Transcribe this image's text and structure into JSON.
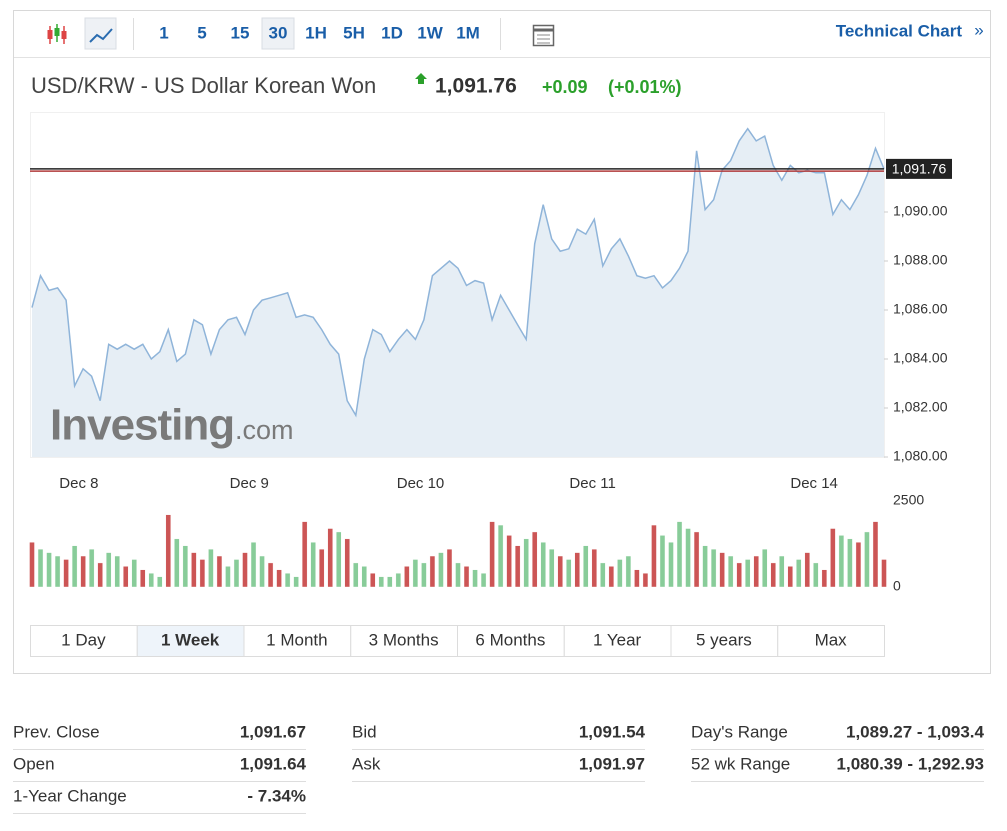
{
  "toolbar": {
    "intervals": [
      "1",
      "5",
      "15",
      "30",
      "1H",
      "5H",
      "1D",
      "1W",
      "1M"
    ],
    "active": 3,
    "link": "Technical Chart",
    "link_arrow": "»"
  },
  "header": {
    "name": "USD/KRW - US Dollar Korean Won",
    "price": "1,091.76",
    "change": "+0.09",
    "change_pct": "(+0.01%)"
  },
  "watermark": {
    "brand": "Investing",
    "suffix": ".com"
  },
  "chart_data": [
    {
      "type": "line",
      "color": "#8fb4d9",
      "fill": "#e6eef5",
      "values": [
        1086.1,
        1087.4,
        1086.8,
        1086.9,
        1086.4,
        1082.9,
        1083.6,
        1083.3,
        1082.3,
        1084.6,
        1084.4,
        1084.6,
        1084.4,
        1084.6,
        1084.0,
        1084.3,
        1085.2,
        1083.9,
        1084.2,
        1085.6,
        1085.4,
        1084.2,
        1085.2,
        1085.6,
        1085.7,
        1085.0,
        1086.0,
        1086.4,
        1086.5,
        1086.6,
        1086.7,
        1085.7,
        1085.8,
        1085.7,
        1085.2,
        1084.6,
        1084.2,
        1082.3,
        1081.7,
        1084.0,
        1085.2,
        1085.0,
        1084.3,
        1084.8,
        1085.2,
        1084.8,
        1085.6,
        1087.4,
        1087.7,
        1088.0,
        1087.7,
        1087.0,
        1087.2,
        1087.1,
        1085.6,
        1086.6,
        1086.0,
        1085.4,
        1084.8,
        1088.7,
        1090.3,
        1088.9,
        1088.4,
        1088.5,
        1089.3,
        1089.1,
        1089.7,
        1087.8,
        1088.5,
        1088.9,
        1088.2,
        1087.4,
        1087.3,
        1087.4,
        1086.9,
        1087.2,
        1087.7,
        1088.4,
        1092.5,
        1090.1,
        1090.5,
        1091.7,
        1092.1,
        1092.9,
        1093.4,
        1092.9,
        1093.1,
        1091.9,
        1091.3,
        1091.9,
        1091.6,
        1091.7,
        1091.6,
        1091.6,
        1089.9,
        1090.5,
        1090.1,
        1090.7,
        1091.5,
        1092.6,
        1091.76
      ],
      "xlim": [
        0,
        100
      ],
      "xticks": [
        {
          "value": 5.5,
          "label": "Dec 8"
        },
        {
          "value": 25.5,
          "label": "Dec 9"
        },
        {
          "value": 45.6,
          "label": "Dec 10"
        },
        {
          "value": 65.8,
          "label": "Dec 11"
        },
        {
          "value": 91.8,
          "label": "Dec 14"
        }
      ],
      "ylim": [
        1080,
        1094
      ],
      "yticks": [
        {
          "value": 1080,
          "label": "1,080.00"
        },
        {
          "value": 1082,
          "label": "1,082.00"
        },
        {
          "value": 1084,
          "label": "1,084.00"
        },
        {
          "value": 1086,
          "label": "1,086.00"
        },
        {
          "value": 1088,
          "label": "1,088.00"
        },
        {
          "value": 1090,
          "label": "1,090.00"
        }
      ],
      "hlines": [
        {
          "value": 1091.76,
          "label": "1,091.76",
          "color": "#222222"
        },
        {
          "value": 1091.67,
          "color": "#b03a3a"
        }
      ]
    },
    {
      "type": "bar",
      "values": [
        1300,
        1100,
        1000,
        900,
        800,
        1200,
        900,
        1100,
        700,
        1000,
        900,
        600,
        800,
        500,
        400,
        300,
        2100,
        1400,
        1200,
        1000,
        800,
        1100,
        900,
        600,
        800,
        1000,
        1300,
        900,
        700,
        500,
        400,
        300,
        1900,
        1300,
        1100,
        1700,
        1600,
        1400,
        700,
        600,
        400,
        300,
        300,
        400,
        600,
        800,
        700,
        900,
        1000,
        1100,
        700,
        600,
        500,
        400,
        1900,
        1800,
        1500,
        1200,
        1400,
        1600,
        1300,
        1100,
        900,
        800,
        1000,
        1200,
        1100,
        700,
        600,
        800,
        900,
        500,
        400,
        1800,
        1500,
        1300,
        1900,
        1700,
        1600,
        1200,
        1100,
        1000,
        900,
        700,
        800,
        900,
        1100,
        700,
        900,
        600,
        800,
        1000,
        700,
        500,
        1700,
        1500,
        1400,
        1300,
        1600,
        1900,
        800
      ],
      "colors": [
        "#c55",
        "#8c9",
        "#8c9",
        "#8c9",
        "#c55",
        "#8c9",
        "#c55",
        "#8c9",
        "#c55",
        "#8c9",
        "#8c9",
        "#c55",
        "#8c9",
        "#c55",
        "#8c9",
        "#8c9",
        "#c55",
        "#8c9",
        "#8c9",
        "#c55",
        "#c55",
        "#8c9",
        "#c55",
        "#8c9",
        "#8c9",
        "#c55",
        "#8c9",
        "#8c9",
        "#c55",
        "#c55",
        "#8c9",
        "#8c9",
        "#c55",
        "#8c9",
        "#c55",
        "#c55",
        "#8c9",
        "#c55",
        "#8c9",
        "#8c9",
        "#c55",
        "#8c9",
        "#8c9",
        "#8c9",
        "#c55",
        "#8c9",
        "#8c9",
        "#c55",
        "#8c9",
        "#c55",
        "#8c9",
        "#c55",
        "#8c9",
        "#8c9",
        "#c55",
        "#8c9",
        "#c55",
        "#c55",
        "#8c9",
        "#c55",
        "#8c9",
        "#8c9",
        "#c55",
        "#8c9",
        "#c55",
        "#8c9",
        "#c55",
        "#8c9",
        "#c55",
        "#8c9",
        "#8c9",
        "#c55",
        "#c55",
        "#c55",
        "#8c9",
        "#8c9",
        "#8c9",
        "#8c9",
        "#c55",
        "#8c9",
        "#8c9",
        "#c55",
        "#8c9",
        "#c55",
        "#8c9",
        "#c55",
        "#8c9",
        "#c55",
        "#8c9",
        "#c55",
        "#8c9",
        "#c55",
        "#8c9",
        "#c55",
        "#c55",
        "#8c9",
        "#8c9",
        "#c55",
        "#8c9",
        "#c55",
        "#c55"
      ],
      "xlim": [
        0,
        100
      ],
      "ylim": [
        0,
        2500
      ],
      "yticks": [
        0,
        2500
      ]
    }
  ],
  "ranges": [
    "1 Day",
    "1 Week",
    "1 Month",
    "3 Months",
    "6 Months",
    "1 Year",
    "5 years",
    "Max"
  ],
  "active_range": 1,
  "stats": [
    [
      {
        "label": "Prev. Close",
        "value": "1,091.67"
      },
      {
        "label": "Open",
        "value": "1,091.64"
      },
      {
        "label": "1-Year Change",
        "value": "- 7.34%"
      }
    ],
    [
      {
        "label": "Bid",
        "value": "1,091.54"
      },
      {
        "label": "Ask",
        "value": "1,091.97"
      }
    ],
    [
      {
        "label": "Day's Range",
        "value": "1,089.27 - 1,093.4"
      },
      {
        "label": "52 wk Range",
        "value": "1,080.39 - 1,292.93"
      }
    ]
  ]
}
